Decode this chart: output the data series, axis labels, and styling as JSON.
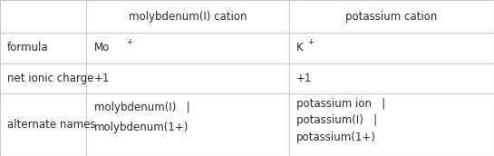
{
  "background_color": "#f5f5f5",
  "table_bg": "#ffffff",
  "border_color": "#c8c8c8",
  "text_color": "#2b2b2b",
  "header_row": [
    "",
    "molybdenum(I) cation",
    "potassium cation"
  ],
  "col_starts": [
    0.0,
    0.175,
    0.585
  ],
  "col_ends": [
    0.175,
    0.585,
    1.0
  ],
  "row_tops": [
    1.0,
    0.79,
    0.595,
    0.4,
    0.0
  ],
  "font_size": 8.5,
  "rows": [
    {
      "label": "formula",
      "col1_main": "Mo",
      "col1_sup": "+",
      "col2_main": "K",
      "col2_sup": "+"
    },
    {
      "label": "net ionic charge",
      "col1": "+1",
      "col2": "+1"
    },
    {
      "label": "alternate names",
      "col1_lines": [
        "molybdenum(I)   |",
        "molybdenum(1+)"
      ],
      "col2_lines": [
        "potassium ion   |",
        "potassium(I)   |",
        "potassium(1+)"
      ]
    }
  ]
}
